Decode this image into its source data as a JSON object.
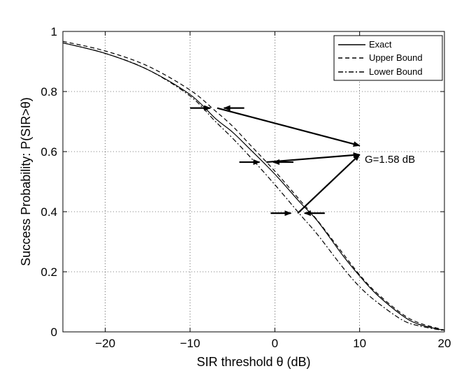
{
  "chart_data": {
    "type": "line",
    "title": "",
    "xlabel": "SIR threshold θ (dB)",
    "ylabel": "Success Probability: P(SIR>θ)",
    "xlim": [
      -25,
      20
    ],
    "ylim": [
      0,
      1
    ],
    "xticks": [
      -20,
      -10,
      0,
      10,
      20
    ],
    "xtick_labels": [
      "−20",
      "−10",
      "0",
      "10",
      "20"
    ],
    "yticks": [
      0,
      0.2,
      0.4,
      0.6,
      0.8,
      1
    ],
    "ytick_labels": [
      "0",
      "0.2",
      "0.4",
      "0.6",
      "0.8",
      "1"
    ],
    "grid": true,
    "legend_position": "top-right",
    "series": [
      {
        "name": "Exact",
        "style": "solid",
        "x": [
          -25,
          -20,
          -15,
          -10,
          -7,
          -5,
          -3,
          0,
          3,
          5,
          8,
          10,
          12,
          15,
          17,
          20
        ],
        "y": [
          0.962,
          0.927,
          0.873,
          0.79,
          0.71,
          0.665,
          0.61,
          0.525,
          0.43,
          0.37,
          0.255,
          0.186,
          0.125,
          0.055,
          0.025,
          0.005
        ]
      },
      {
        "name": "Upper Bound",
        "style": "dashed",
        "x": [
          -25,
          -20,
          -15,
          -10,
          -7,
          -5,
          -3,
          0,
          3,
          5,
          8,
          10,
          12,
          15,
          17,
          20
        ],
        "y": [
          0.967,
          0.935,
          0.885,
          0.805,
          0.735,
          0.685,
          0.625,
          0.535,
          0.437,
          0.372,
          0.262,
          0.19,
          0.13,
          0.06,
          0.03,
          0.006
        ]
      },
      {
        "name": "Lower Bound",
        "style": "dashdot",
        "x": [
          -25,
          -20,
          -15,
          -10,
          -7,
          -5,
          -3,
          0,
          3,
          5,
          8,
          10,
          12,
          15,
          17,
          20
        ],
        "y": [
          0.962,
          0.927,
          0.873,
          0.785,
          0.7,
          0.645,
          0.585,
          0.49,
          0.39,
          0.325,
          0.215,
          0.15,
          0.1,
          0.04,
          0.02,
          0.004
        ]
      }
    ],
    "annotations": [
      {
        "text": "G=1.58 dB",
        "x": 10.4,
        "y": 0.585
      }
    ],
    "gap_markers": [
      {
        "y": 0.745,
        "x_left": -7.6,
        "x_right": -6.0,
        "arrow_to": [
          10,
          0.62
        ]
      },
      {
        "y": 0.565,
        "x_left": -1.8,
        "x_right": -0.2,
        "arrow_to": [
          10,
          0.59
        ]
      },
      {
        "y": 0.395,
        "x_left": 1.9,
        "x_right": 3.5,
        "arrow_to": [
          10,
          0.59
        ]
      }
    ]
  }
}
